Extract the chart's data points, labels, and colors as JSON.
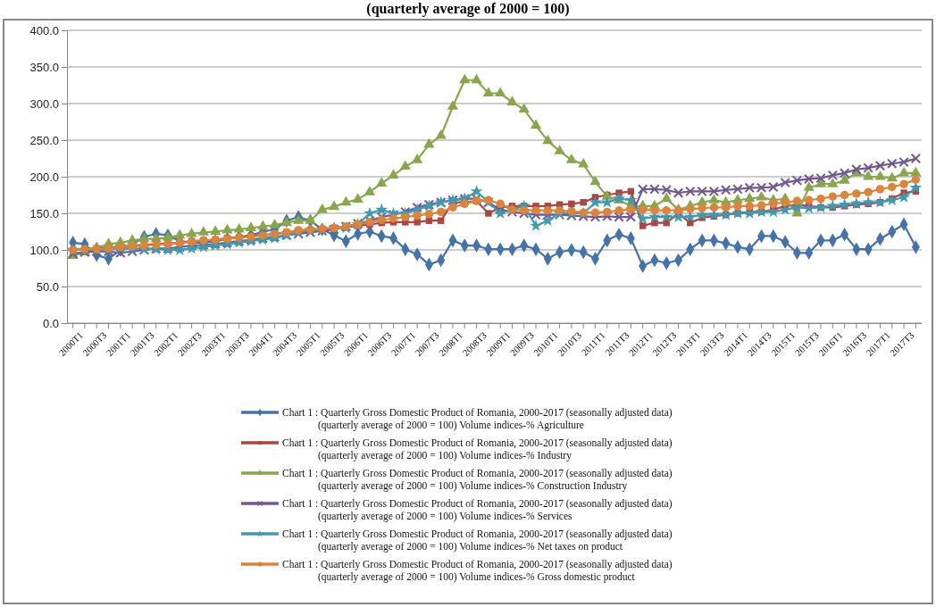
{
  "chart_data": {
    "type": "line",
    "title": "(quarterly average of 2000 = 100)",
    "categories": [
      "2000T1",
      null,
      "2000T3",
      null,
      "2001T1",
      null,
      "2001T3",
      null,
      "2002T1",
      null,
      "2002T3",
      null,
      "2003T1",
      null,
      "2003T3",
      null,
      "2004T1",
      null,
      "2004T3",
      null,
      "2005T1",
      null,
      "2005T3",
      null,
      "2006T1",
      null,
      "2006T3",
      null,
      "2007T1",
      null,
      "2007T3",
      null,
      "2008T1",
      null,
      "2008T3",
      null,
      "2009T1",
      null,
      "2009T3",
      null,
      "2010T1",
      null,
      "2010T3",
      null,
      "2011T1",
      null,
      "2011T3",
      null,
      "2012T1",
      null,
      "2012T3",
      null,
      "2013T1",
      null,
      "2013T3",
      null,
      "2014T1",
      null,
      "2014T3",
      null,
      "2015T1",
      null,
      "2015T3",
      null,
      "2016T1",
      null,
      "2016T3",
      null,
      "2017T1",
      null,
      "2017T3",
      null
    ],
    "ylim": [
      0,
      400
    ],
    "yticks": [
      {
        "value": 0,
        "label": "0.0"
      },
      {
        "value": 50,
        "label": "50.0"
      },
      {
        "value": 100,
        "label": "100.0"
      },
      {
        "value": 150,
        "label": "150.0"
      },
      {
        "value": 200,
        "label": "200.0"
      },
      {
        "value": 250,
        "label": "250.0"
      },
      {
        "value": 300,
        "label": "300.0"
      },
      {
        "value": 350,
        "label": "350.0"
      },
      {
        "value": 400,
        "label": "400.0"
      }
    ],
    "grid": "y",
    "legend": "bottom",
    "line_style": "solid",
    "series": [
      {
        "name": "Chart 1 : Quarterly Gross Domestic Product of Romania, 2000-2017 (seasonally adjusted data) (quarterly average of 2000 = 100) Volume indices-% Agriculture",
        "color": "#4572a7",
        "marker": "diamond",
        "values": [
          110,
          108,
          93,
          88,
          100,
          108,
          118,
          122,
          120,
          112,
          110,
          110,
          112,
          115,
          118,
          120,
          125,
          128,
          140,
          145,
          140,
          128,
          120,
          112,
          122,
          125,
          119,
          116,
          101,
          94,
          80,
          86,
          113,
          106,
          106,
          101,
          101,
          101,
          106,
          101,
          88,
          97,
          100,
          97,
          88,
          113,
          121,
          116,
          78,
          86,
          82,
          86,
          101,
          113,
          113,
          109,
          104,
          101,
          119,
          119,
          111,
          96,
          96,
          113,
          113,
          121,
          101,
          101,
          115,
          125,
          135,
          104
        ]
      },
      {
        "name": "Chart 1 : Quarterly Gross Domestic Product of Romania, 2000-2017 (seasonally adjusted data) (quarterly average of 2000 = 100) Volume indices-% Industry",
        "color": "#aa4643",
        "marker": "square",
        "values": [
          100,
          101,
          102,
          103,
          105,
          106,
          107,
          108,
          109,
          110,
          112,
          113,
          114,
          116,
          117,
          119,
          120,
          122,
          124,
          126,
          127,
          128,
          130,
          131,
          133,
          135,
          137,
          138,
          138,
          138,
          140,
          140,
          165,
          165,
          167,
          150,
          158,
          160,
          160,
          160,
          160,
          162,
          163,
          165,
          172,
          175,
          178,
          180,
          133,
          137,
          137,
          150,
          137,
          144,
          146,
          148,
          150,
          152,
          152,
          155,
          160,
          162,
          160,
          158,
          158,
          160,
          162,
          163,
          165,
          170,
          178,
          180
        ]
      },
      {
        "name": "Chart 1 : Quarterly Gross Domestic Product of Romania, 2000-2017 (seasonally adjusted data) (quarterly average of 2000 = 100) Volume indices-% Construction Industry",
        "color": "#89a54e",
        "marker": "triangle",
        "values": [
          92,
          97,
          103,
          108,
          110,
          113,
          115,
          115,
          117,
          120,
          122,
          124,
          125,
          127,
          128,
          130,
          132,
          134,
          137,
          140,
          140,
          155,
          159,
          165,
          169,
          179,
          191,
          202,
          214,
          223,
          244,
          256,
          296,
          332,
          332,
          314,
          314,
          302,
          292,
          270,
          249,
          235,
          223,
          217,
          193,
          173,
          168,
          160,
          160,
          160,
          170,
          155,
          160,
          165,
          168,
          165,
          168,
          170,
          172,
          168,
          170,
          150,
          185,
          190,
          190,
          195,
          205,
          200,
          200,
          198,
          205,
          205
        ]
      },
      {
        "name": "Chart 1 : Quarterly Gross Domestic Product of Romania, 2000-2017 (seasonally adjusted data) (quarterly average of 2000 = 100) Volume indices-% Services",
        "color": "#71588f",
        "marker": "cross",
        "values": [
          95,
          97,
          98,
          98,
          96,
          98,
          100,
          102,
          102,
          104,
          106,
          107,
          108,
          110,
          112,
          114,
          116,
          118,
          120,
          122,
          124,
          126,
          128,
          132,
          136,
          140,
          145,
          148,
          152,
          158,
          162,
          165,
          168,
          170,
          170,
          165,
          155,
          152,
          150,
          148,
          148,
          148,
          147,
          146,
          145,
          146,
          145,
          145,
          183,
          183,
          182,
          178,
          180,
          180,
          180,
          182,
          183,
          185,
          185,
          186,
          192,
          195,
          197,
          198,
          202,
          205,
          210,
          212,
          215,
          218,
          220,
          225
        ]
      },
      {
        "name": "Chart 1 : Quarterly Gross Domestic Product of Romania, 2000-2017 (seasonally adjusted data) (quarterly average of 2000 = 100) Volume indices-% Net taxes on product",
        "color": "#4198af",
        "marker": "star",
        "values": [
          100,
          100,
          100,
          101,
          102,
          102,
          101,
          101,
          100,
          100,
          102,
          104,
          106,
          108,
          110,
          112,
          114,
          116,
          120,
          124,
          127,
          128,
          130,
          130,
          135,
          150,
          155,
          150,
          150,
          155,
          160,
          165,
          168,
          170,
          180,
          165,
          150,
          155,
          160,
          133,
          140,
          150,
          150,
          150,
          165,
          165,
          170,
          168,
          143,
          145,
          145,
          145,
          145,
          148,
          148,
          148,
          150,
          150,
          152,
          152,
          155,
          158,
          157,
          158,
          160,
          162,
          163,
          165,
          165,
          168,
          172,
          185
        ]
      },
      {
        "name": "Chart 1 : Quarterly Gross Domestic Product of Romania, 2000-2017 (seasonally adjusted data) (quarterly average of 2000 = 100) Volume indices-% Gross domestic product",
        "color": "#db843d",
        "marker": "circle",
        "values": [
          100,
          101,
          101,
          102,
          104,
          105,
          106,
          107,
          108,
          110,
          111,
          113,
          114,
          115,
          117,
          118,
          120,
          122,
          124,
          127,
          128,
          129,
          130,
          132,
          135,
          138,
          141,
          143,
          145,
          147,
          149,
          152,
          158,
          163,
          167,
          168,
          163,
          155,
          154,
          154,
          154,
          154,
          153,
          151,
          151,
          152,
          154,
          155,
          155,
          154,
          154,
          154,
          156,
          157,
          158,
          158,
          160,
          160,
          161,
          163,
          165,
          167,
          168,
          170,
          173,
          175,
          177,
          179,
          183,
          186,
          190,
          196
        ]
      }
    ]
  }
}
